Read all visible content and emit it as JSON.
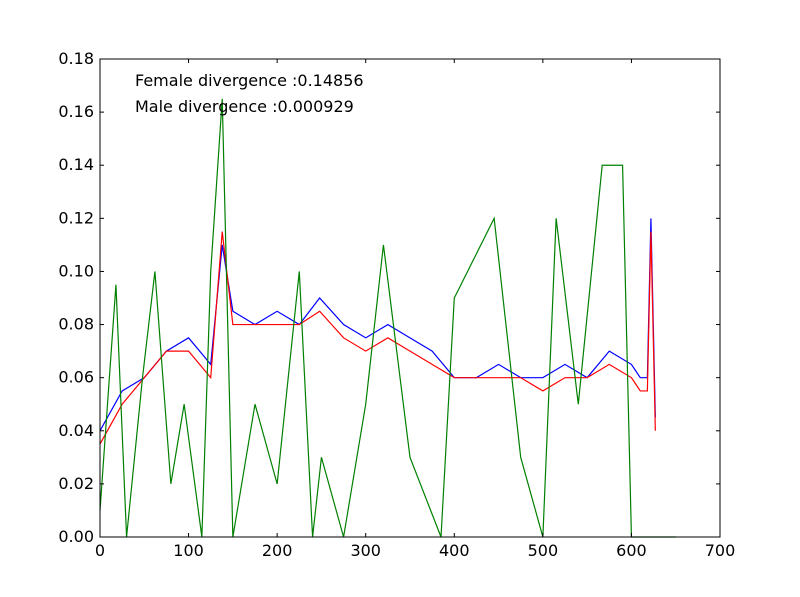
{
  "chart_data": {
    "type": "line",
    "title": "",
    "xlabel": "",
    "ylabel": "",
    "xlim": [
      0,
      700
    ],
    "ylim": [
      0,
      0.18
    ],
    "xticks": [
      0,
      100,
      200,
      300,
      400,
      500,
      600,
      700
    ],
    "yticks": [
      0.0,
      0.02,
      0.04,
      0.06,
      0.08,
      0.1,
      0.12,
      0.14,
      0.16,
      0.18
    ],
    "xtick_labels": [
      "0",
      "100",
      "200",
      "300",
      "400",
      "500",
      "600",
      "700"
    ],
    "ytick_labels": [
      "0.00",
      "0.02",
      "0.04",
      "0.06",
      "0.08",
      "0.10",
      "0.12",
      "0.14",
      "0.16",
      "0.18"
    ],
    "grid": false,
    "legend": "none",
    "annotations": [
      "Female divergence :0.14856",
      "Male divergence :0.000929"
    ],
    "series": [
      {
        "color": "#0000ff",
        "x": [
          0,
          25,
          50,
          75,
          100,
          125,
          138,
          150,
          175,
          200,
          225,
          248,
          275,
          300,
          325,
          350,
          375,
          400,
          425,
          450,
          475,
          500,
          525,
          550,
          575,
          600,
          610,
          618,
          622,
          627
        ],
        "y": [
          0.04,
          0.055,
          0.06,
          0.07,
          0.075,
          0.065,
          0.11,
          0.085,
          0.08,
          0.085,
          0.08,
          0.09,
          0.08,
          0.075,
          0.08,
          0.075,
          0.07,
          0.06,
          0.06,
          0.065,
          0.06,
          0.06,
          0.065,
          0.06,
          0.07,
          0.065,
          0.06,
          0.06,
          0.12,
          0.045
        ]
      },
      {
        "color": "#ff0000",
        "x": [
          0,
          25,
          50,
          75,
          100,
          125,
          138,
          150,
          175,
          200,
          225,
          248,
          275,
          300,
          325,
          350,
          375,
          400,
          425,
          450,
          475,
          500,
          525,
          550,
          575,
          600,
          610,
          618,
          622,
          627
        ],
        "y": [
          0.035,
          0.05,
          0.06,
          0.07,
          0.07,
          0.06,
          0.115,
          0.08,
          0.08,
          0.08,
          0.08,
          0.085,
          0.075,
          0.07,
          0.075,
          0.07,
          0.065,
          0.06,
          0.06,
          0.06,
          0.06,
          0.055,
          0.06,
          0.06,
          0.065,
          0.06,
          0.055,
          0.055,
          0.115,
          0.04
        ]
      },
      {
        "color": "#008000",
        "x": [
          0,
          18,
          30,
          48,
          62,
          80,
          95,
          115,
          125,
          138,
          150,
          175,
          200,
          225,
          240,
          250,
          275,
          300,
          320,
          350,
          385,
          400,
          445,
          475,
          500,
          515,
          540,
          567,
          590,
          600,
          627,
          650
        ],
        "y": [
          0.01,
          0.095,
          0.0,
          0.06,
          0.1,
          0.02,
          0.05,
          0.0,
          0.1,
          0.165,
          0.0,
          0.05,
          0.02,
          0.1,
          0.0,
          0.03,
          0.0,
          0.05,
          0.11,
          0.03,
          0.0,
          0.09,
          0.12,
          0.03,
          0.0,
          0.12,
          0.05,
          0.14,
          0.14,
          0.0,
          0.0,
          0.0
        ]
      }
    ]
  }
}
